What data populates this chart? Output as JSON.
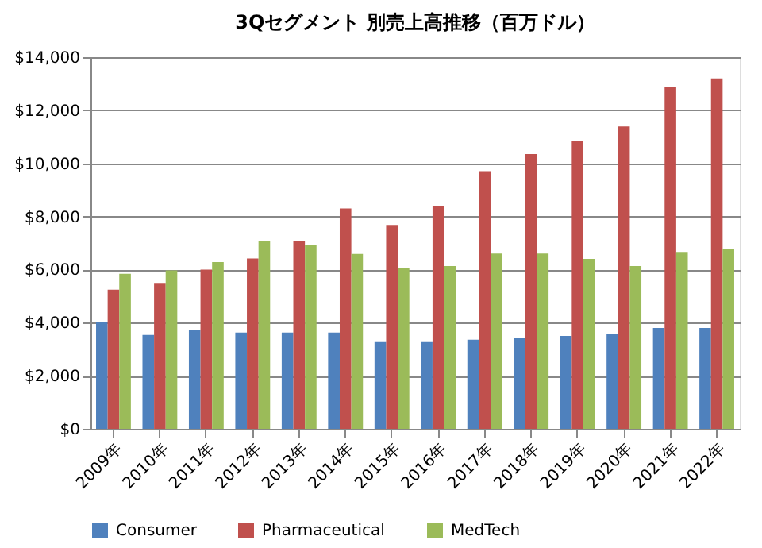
{
  "chart_data": {
    "type": "bar",
    "title": "3Qセグメント 別売上高推移（百万ドル）",
    "categories": [
      "2009年",
      "2010年",
      "2011年",
      "2012年",
      "2013年",
      "2014年",
      "2015年",
      "2016年",
      "2017年",
      "2018年",
      "2019年",
      "2020年",
      "2021年",
      "2022年"
    ],
    "series": [
      {
        "name": "Consumer",
        "color": "#4f81bd",
        "values": [
          4030,
          3540,
          3740,
          3630,
          3630,
          3630,
          3300,
          3300,
          3360,
          3430,
          3500,
          3560,
          3800,
          3800
        ]
      },
      {
        "name": "Pharmaceutical",
        "color": "#c0504d",
        "values": [
          5240,
          5500,
          6000,
          6420,
          7060,
          8300,
          7680,
          8380,
          9710,
          10350,
          10860,
          11390,
          12880,
          13200
        ]
      },
      {
        "name": "MedTech",
        "color": "#9bbb59",
        "values": [
          5840,
          5970,
          6280,
          7060,
          6920,
          6590,
          6060,
          6130,
          6600,
          6600,
          6400,
          6130,
          6660,
          6790
        ]
      }
    ],
    "ylim": [
      0,
      14000
    ],
    "yticks": [
      {
        "value": 0,
        "label": "$0"
      },
      {
        "value": 2000,
        "label": "$2,000"
      },
      {
        "value": 4000,
        "label": "$4,000"
      },
      {
        "value": 6000,
        "label": "$6,000"
      },
      {
        "value": 8000,
        "label": "$8,000"
      },
      {
        "value": 10000,
        "label": "$10,000"
      },
      {
        "value": 12000,
        "label": "$12,000"
      },
      {
        "value": 14000,
        "label": "$14,000"
      }
    ],
    "grid": "y",
    "legend": "bottom"
  }
}
